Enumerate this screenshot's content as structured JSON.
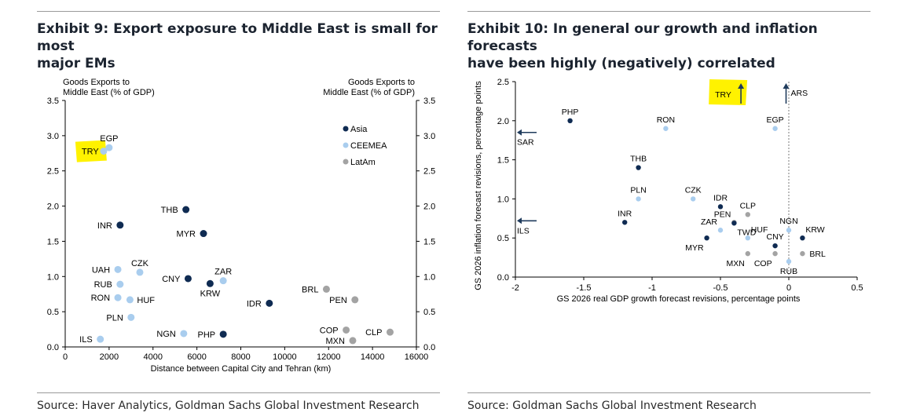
{
  "colors": {
    "asia": "#0f2b52",
    "ceemea": "#a9cdee",
    "latam": "#a3a3a3",
    "highlight": "#fff200",
    "arrow": "#1f3b5c",
    "grid": "#000000"
  },
  "exhibit9": {
    "title_line1": "Exhibit 9: Export exposure to Middle East is small for most",
    "title_line2": "major EMs",
    "source": "Source: Haver Analytics, Goldman Sachs Global Investment Research"
  },
  "exhibit10": {
    "title_line1": "Exhibit 10: In general our growth and inflation forecasts",
    "title_line2": "have been highly (negatively) correlated",
    "source": "Source: Goldman Sachs Global Investment Research"
  },
  "chart_data": [
    {
      "type": "scatter",
      "title": "Exhibit 9: Export exposure to Middle East is small for most major EMs",
      "xlabel": "Distance between Capital City and Tehran (km)",
      "ylabel_left_line1": "Goods Exports to",
      "ylabel_left_line2": "Middle East (% of GDP)",
      "ylabel_right_line1": "Goods Exports to",
      "ylabel_right_line2": "Middle East (% of GDP)",
      "xlim": [
        0,
        16000
      ],
      "ylim": [
        0,
        3.5
      ],
      "xticks": [
        "0",
        "2000",
        "4000",
        "6000",
        "8000",
        "10000",
        "12000",
        "14000",
        "16000"
      ],
      "yticks": [
        "0.0",
        "0.5",
        "1.0",
        "1.5",
        "2.0",
        "2.5",
        "3.0",
        "3.5"
      ],
      "legend": [
        {
          "label": "Asia",
          "group": "asia"
        },
        {
          "label": "CEEMEA",
          "group": "ceemea"
        },
        {
          "label": "LatAm",
          "group": "latam"
        }
      ],
      "highlight_label": "TRY",
      "points": [
        {
          "label": "EGP",
          "x": 2000,
          "y": 2.83,
          "group": "ceemea",
          "lpos": "above"
        },
        {
          "label": "TRY",
          "x": 1750,
          "y": 2.78,
          "group": "ceemea",
          "lpos": "hidden"
        },
        {
          "label": "THB",
          "x": 5500,
          "y": 1.95,
          "group": "asia",
          "lpos": "left"
        },
        {
          "label": "INR",
          "x": 2500,
          "y": 1.73,
          "group": "asia",
          "lpos": "left"
        },
        {
          "label": "MYR",
          "x": 6300,
          "y": 1.61,
          "group": "asia",
          "lpos": "left"
        },
        {
          "label": "UAH",
          "x": 2400,
          "y": 1.1,
          "group": "ceemea",
          "lpos": "left"
        },
        {
          "label": "CZK",
          "x": 3400,
          "y": 1.06,
          "group": "ceemea",
          "lpos": "above"
        },
        {
          "label": "RUB",
          "x": 2500,
          "y": 0.89,
          "group": "ceemea",
          "lpos": "left"
        },
        {
          "label": "CNY",
          "x": 5600,
          "y": 0.97,
          "group": "asia",
          "lpos": "left"
        },
        {
          "label": "KRW",
          "x": 6600,
          "y": 0.9,
          "group": "asia",
          "lpos": "below"
        },
        {
          "label": "ZAR",
          "x": 7200,
          "y": 0.94,
          "group": "ceemea",
          "lpos": "above"
        },
        {
          "label": "RON",
          "x": 2400,
          "y": 0.7,
          "group": "ceemea",
          "lpos": "left"
        },
        {
          "label": "HUF",
          "x": 2950,
          "y": 0.67,
          "group": "ceemea",
          "lpos": "right"
        },
        {
          "label": "BRL",
          "x": 11900,
          "y": 0.82,
          "group": "latam",
          "lpos": "left"
        },
        {
          "label": "PEN",
          "x": 13200,
          "y": 0.67,
          "group": "latam",
          "lpos": "left"
        },
        {
          "label": "IDR",
          "x": 9300,
          "y": 0.62,
          "group": "asia",
          "lpos": "left"
        },
        {
          "label": "PLN",
          "x": 3000,
          "y": 0.42,
          "group": "ceemea",
          "lpos": "left"
        },
        {
          "label": "NGN",
          "x": 5400,
          "y": 0.19,
          "group": "ceemea",
          "lpos": "left"
        },
        {
          "label": "PHP",
          "x": 7200,
          "y": 0.18,
          "group": "asia",
          "lpos": "left"
        },
        {
          "label": "COP",
          "x": 12800,
          "y": 0.24,
          "group": "latam",
          "lpos": "left"
        },
        {
          "label": "CLP",
          "x": 14800,
          "y": 0.21,
          "group": "latam",
          "lpos": "left"
        },
        {
          "label": "MXN",
          "x": 13100,
          "y": 0.09,
          "group": "latam",
          "lpos": "left"
        },
        {
          "label": "ILS",
          "x": 1600,
          "y": 0.11,
          "group": "ceemea",
          "lpos": "left"
        }
      ]
    },
    {
      "type": "scatter",
      "title": "Exhibit 10: In general our growth and inflation forecasts have been highly (negatively) correlated",
      "xlabel": "GS 2026 real GDP growth forecast revisions, percentage points",
      "ylabel": "GS 2026 inflation forecast revisions, percentage points",
      "xlim": [
        -2,
        0.5
      ],
      "ylim": [
        0,
        2.5
      ],
      "xticks": [
        "-2",
        "-1.5",
        "-1",
        "-0.5",
        "0",
        "0.5"
      ],
      "yticks": [
        "0.0",
        "0.5",
        "1.0",
        "1.5",
        "2.0",
        "2.5"
      ],
      "reference_line_x": 0,
      "highlight_label": "TRY",
      "points": [
        {
          "label": "PHP",
          "x": -1.6,
          "y": 2.0,
          "group": "asia",
          "lpos": "above"
        },
        {
          "label": "RON",
          "x": -0.9,
          "y": 1.9,
          "group": "ceemea",
          "lpos": "above"
        },
        {
          "label": "EGP",
          "x": -0.1,
          "y": 1.9,
          "group": "ceemea",
          "lpos": "above"
        },
        {
          "label": "THB",
          "x": -1.1,
          "y": 1.4,
          "group": "asia",
          "lpos": "above"
        },
        {
          "label": "PLN",
          "x": -1.1,
          "y": 1.0,
          "group": "ceemea",
          "lpos": "above"
        },
        {
          "label": "CZK",
          "x": -0.7,
          "y": 1.0,
          "group": "ceemea",
          "lpos": "above"
        },
        {
          "label": "IDR",
          "x": -0.5,
          "y": 0.9,
          "group": "asia",
          "lpos": "above"
        },
        {
          "label": "CLP",
          "x": -0.3,
          "y": 0.8,
          "group": "latam",
          "lpos": "above"
        },
        {
          "label": "INR",
          "x": -1.2,
          "y": 0.7,
          "group": "asia",
          "lpos": "above"
        },
        {
          "label": "PEN",
          "x": -0.4,
          "y": 0.7,
          "group": "latam",
          "lpos": "aboveleft"
        },
        {
          "label": "TWD",
          "x": -0.4,
          "y": 0.69,
          "group": "asia",
          "lpos": "belowright"
        },
        {
          "label": "ZAR",
          "x": -0.5,
          "y": 0.6,
          "group": "ceemea",
          "lpos": "aboveleft"
        },
        {
          "label": "HUF",
          "x": -0.3,
          "y": 0.5,
          "group": "ceemea",
          "lpos": "aboveright"
        },
        {
          "label": "NGN",
          "x": 0.0,
          "y": 0.6,
          "group": "ceemea",
          "lpos": "above"
        },
        {
          "label": "KRW",
          "x": 0.1,
          "y": 0.5,
          "group": "asia",
          "lpos": "aboveright"
        },
        {
          "label": "MYR",
          "x": -0.6,
          "y": 0.5,
          "group": "asia",
          "lpos": "belowleft"
        },
        {
          "label": "CNY",
          "x": -0.1,
          "y": 0.4,
          "group": "asia",
          "lpos": "above"
        },
        {
          "label": "MXN",
          "x": -0.3,
          "y": 0.3,
          "group": "latam",
          "lpos": "belowleft"
        },
        {
          "label": "COP",
          "x": -0.1,
          "y": 0.3,
          "group": "latam",
          "lpos": "belowleft"
        },
        {
          "label": "BRL",
          "x": 0.1,
          "y": 0.3,
          "group": "latam",
          "lpos": "right"
        },
        {
          "label": "RUB",
          "x": 0.0,
          "y": 0.2,
          "group": "ceemea",
          "lpos": "below"
        }
      ],
      "offscale": [
        {
          "label": "SAR",
          "direction": "left",
          "y": 1.85
        },
        {
          "label": "ILS",
          "direction": "left",
          "y": 0.72
        },
        {
          "label": "TRY",
          "direction": "up",
          "x": -0.35
        },
        {
          "label": "ARS",
          "direction": "up",
          "x": -0.02
        }
      ]
    }
  ]
}
